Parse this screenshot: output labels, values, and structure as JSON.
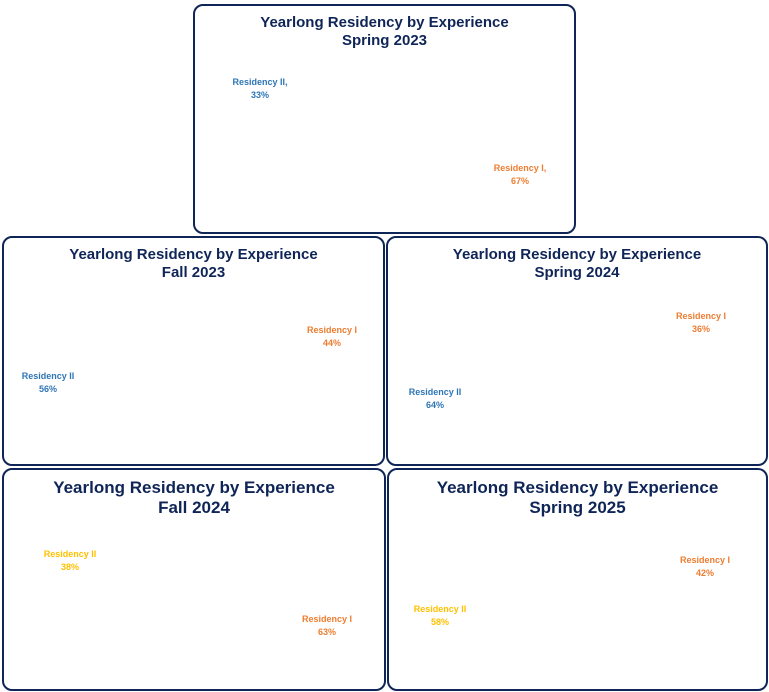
{
  "colors": {
    "residency_i": "#ED7D31",
    "residency_ii": "#FFC000",
    "title": "#0F2557",
    "label_blue": "#2E75B6"
  },
  "chart_data": [
    {
      "type": "pie",
      "style": "3d",
      "title": "Yearlong Residency by Experience",
      "subtitle": "Spring 2023",
      "slices": [
        {
          "name": "Residency I",
          "value": 67,
          "label": "Residency I,",
          "value_label": "67%",
          "label_color": "#ED7D31"
        },
        {
          "name": "Residency II",
          "value": 33,
          "label": "Residency II,",
          "value_label": "33%",
          "label_color": "#2E75B6"
        }
      ]
    },
    {
      "type": "pie",
      "style": "3d",
      "title": "Yearlong Residency by Experience",
      "subtitle": "Fall 2023",
      "slices": [
        {
          "name": "Residency I",
          "value": 44,
          "label": "Residency I",
          "value_label": "44%",
          "label_color": "#ED7D31"
        },
        {
          "name": "Residency II",
          "value": 56,
          "label": "Residency II",
          "value_label": "56%",
          "label_color": "#2E75B6"
        }
      ]
    },
    {
      "type": "pie",
      "style": "3d",
      "title": "Yearlong Residency by Experience",
      "subtitle": "Spring 2024",
      "slices": [
        {
          "name": "Residency I",
          "value": 36,
          "label": "Residency I",
          "value_label": "36%",
          "label_color": "#ED7D31"
        },
        {
          "name": "Residency II",
          "value": 64,
          "label": "Residency II",
          "value_label": "64%",
          "label_color": "#2E75B6"
        }
      ]
    },
    {
      "type": "pie",
      "style": "3d",
      "title": "Yearlong Residency by Experience",
      "subtitle": "Fall 2024",
      "slices": [
        {
          "name": "Residency I",
          "value": 63,
          "label": "Residency I",
          "value_label": "63%",
          "label_color": "#ED7D31"
        },
        {
          "name": "Residency II",
          "value": 38,
          "label": "Residency II",
          "value_label": "38%",
          "label_color": "#FFC000"
        }
      ]
    },
    {
      "type": "pie",
      "style": "3d",
      "title": "Yearlong Residency by Experience",
      "subtitle": "Spring 2025",
      "slices": [
        {
          "name": "Residency I",
          "value": 42,
          "label": "Residency I",
          "value_label": "42%",
          "label_color": "#ED7D31"
        },
        {
          "name": "Residency II",
          "value": 58,
          "label": "Residency II",
          "value_label": "58%",
          "label_color": "#FFC000"
        }
      ]
    }
  ]
}
